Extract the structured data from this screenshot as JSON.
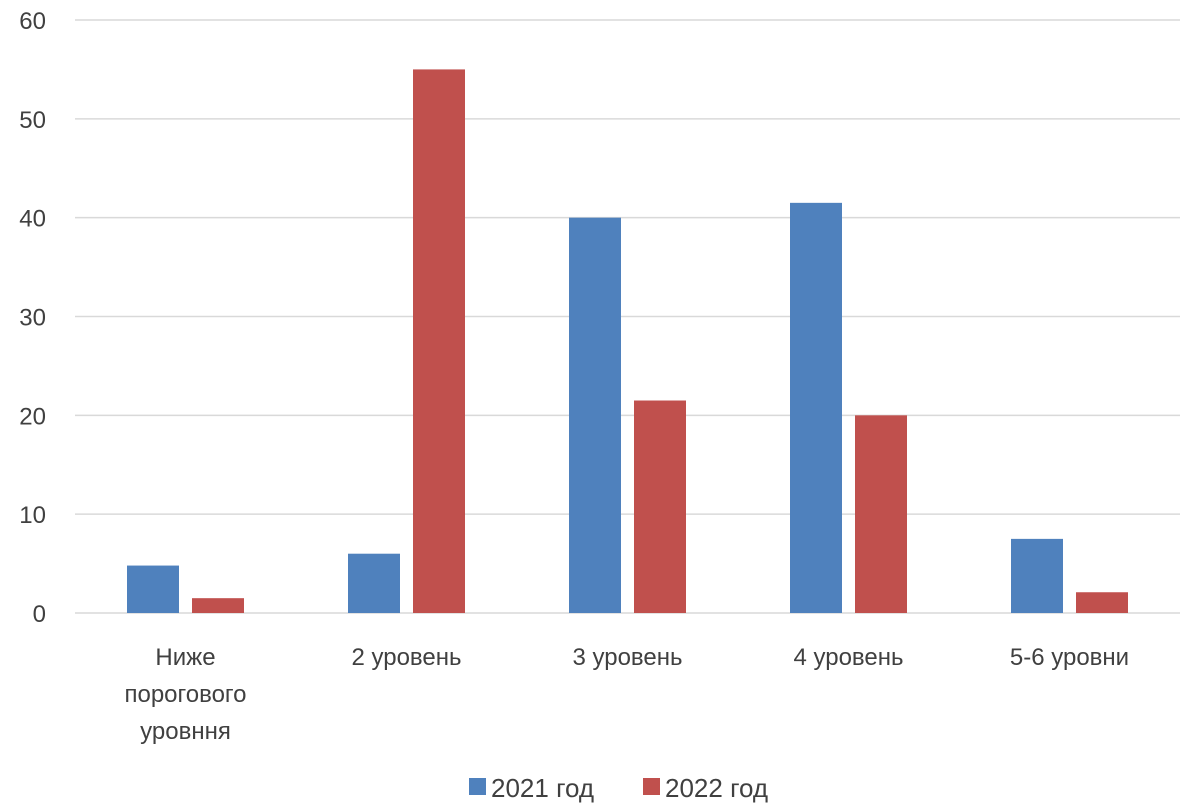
{
  "chart_data": {
    "type": "bar",
    "categories": [
      [
        "Ниже",
        "порогового",
        "уровння"
      ],
      [
        "2 уровень"
      ],
      [
        "3 уровень"
      ],
      [
        "4 уровень"
      ],
      [
        "5-6 уровни"
      ]
    ],
    "series": [
      {
        "name": "2021 год",
        "color": "#4F81BD",
        "values": [
          4.8,
          6.0,
          40.0,
          41.5,
          7.5
        ]
      },
      {
        "name": "2022 год",
        "color": "#C0504D",
        "values": [
          1.5,
          55.0,
          21.5,
          20.0,
          2.1
        ]
      }
    ],
    "ylim": [
      0,
      60
    ],
    "yticks": [
      0,
      10,
      20,
      30,
      40,
      50,
      60
    ],
    "grid": true,
    "legend_position": "bottom",
    "title": "",
    "xlabel": "",
    "ylabel": ""
  }
}
